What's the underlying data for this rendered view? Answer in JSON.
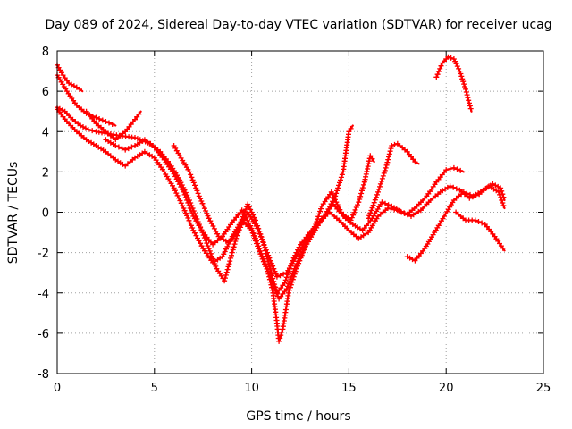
{
  "chart_data": {
    "type": "scatter",
    "title": "Day 089 of 2024, Sidereal Day-to-day VTEC variation (SDTVAR) for receiver ucag",
    "xlabel": "GPS time / hours",
    "ylabel": "SDTVAR / TECUs",
    "xlim": [
      0,
      25
    ],
    "ylim": [
      -8,
      8
    ],
    "xticks": [
      0,
      5,
      10,
      15,
      20,
      25
    ],
    "yticks": [
      -8,
      -6,
      -4,
      -2,
      0,
      2,
      4,
      6,
      8
    ],
    "xtick_labels": [
      "0",
      "5",
      "10",
      "15",
      "20",
      "25"
    ],
    "ytick_labels": [
      "-8",
      "-6",
      "-4",
      "-2",
      "0",
      "2",
      "4",
      "6",
      "8"
    ],
    "grid": true,
    "marker": "+",
    "color": "#ff0000",
    "series": [
      {
        "name": "track-1",
        "points": [
          [
            0,
            7.3
          ],
          [
            0.3,
            6.8
          ],
          [
            0.6,
            6.4
          ],
          [
            1.0,
            6.2
          ],
          [
            1.3,
            6.0
          ]
        ]
      },
      {
        "name": "track-2",
        "points": [
          [
            0,
            6.8
          ],
          [
            0.5,
            6.0
          ],
          [
            1.0,
            5.3
          ],
          [
            1.5,
            4.9
          ],
          [
            2.0,
            4.7
          ],
          [
            2.5,
            4.5
          ],
          [
            3.0,
            4.3
          ]
        ]
      },
      {
        "name": "track-3",
        "points": [
          [
            0,
            5.2
          ],
          [
            0.4,
            5.0
          ],
          [
            0.8,
            4.6
          ],
          [
            1.2,
            4.3
          ],
          [
            1.6,
            4.1
          ],
          [
            2.0,
            4.0
          ],
          [
            2.6,
            3.9
          ],
          [
            3.2,
            3.8
          ],
          [
            4.0,
            3.7
          ],
          [
            4.8,
            3.4
          ],
          [
            5.3,
            3.0
          ],
          [
            5.8,
            2.4
          ],
          [
            6.3,
            1.6
          ],
          [
            6.8,
            0.6
          ],
          [
            7.3,
            -0.6
          ],
          [
            7.8,
            -1.8
          ],
          [
            8.2,
            -2.8
          ],
          [
            8.6,
            -3.4
          ],
          [
            9.0,
            -2.0
          ],
          [
            9.4,
            -0.6
          ],
          [
            9.8,
            0.4
          ],
          [
            10.2,
            -0.4
          ],
          [
            10.6,
            -1.5
          ],
          [
            11.0,
            -3.0
          ],
          [
            11.3,
            -4.0
          ],
          [
            11.7,
            -3.5
          ],
          [
            12.1,
            -2.4
          ],
          [
            12.5,
            -1.6
          ],
          [
            13.0,
            -1.0
          ],
          [
            13.5,
            -0.5
          ],
          [
            14.0,
            0.0
          ],
          [
            14.5,
            -0.4
          ],
          [
            15.0,
            -0.9
          ],
          [
            15.5,
            -1.3
          ],
          [
            16.0,
            -1.0
          ],
          [
            16.5,
            -0.2
          ],
          [
            17.0,
            0.2
          ],
          [
            17.5,
            0.1
          ],
          [
            18.0,
            -0.1
          ],
          [
            18.5,
            0.3
          ],
          [
            19.0,
            0.8
          ],
          [
            19.5,
            1.5
          ],
          [
            20.0,
            2.1
          ],
          [
            20.4,
            2.2
          ],
          [
            20.9,
            2.0
          ]
        ]
      },
      {
        "name": "track-4",
        "points": [
          [
            0,
            5.1
          ],
          [
            0.5,
            4.5
          ],
          [
            1.0,
            4.0
          ],
          [
            1.5,
            3.6
          ],
          [
            2.0,
            3.3
          ],
          [
            2.5,
            3.0
          ],
          [
            3.0,
            2.6
          ],
          [
            3.5,
            2.3
          ],
          [
            4.0,
            2.7
          ],
          [
            4.5,
            3.0
          ],
          [
            5.0,
            2.7
          ],
          [
            5.5,
            2.0
          ],
          [
            6.0,
            1.2
          ],
          [
            6.5,
            0.2
          ],
          [
            7.0,
            -0.9
          ],
          [
            7.5,
            -1.8
          ],
          [
            8.0,
            -2.5
          ],
          [
            8.5,
            -2.2
          ],
          [
            9.0,
            -1.2
          ],
          [
            9.5,
            -0.4
          ],
          [
            10.0,
            -0.9
          ],
          [
            10.5,
            -2.2
          ],
          [
            11.0,
            -3.3
          ],
          [
            11.4,
            -4.3
          ],
          [
            11.8,
            -3.8
          ],
          [
            12.2,
            -2.8
          ],
          [
            12.7,
            -1.8
          ],
          [
            13.2,
            -1.0
          ],
          [
            13.7,
            -0.2
          ],
          [
            14.2,
            0.4
          ],
          [
            14.7,
            -0.2
          ],
          [
            15.2,
            -0.6
          ],
          [
            15.7,
            -0.9
          ],
          [
            16.2,
            -0.3
          ],
          [
            16.7,
            0.5
          ],
          [
            17.2,
            0.3
          ],
          [
            17.7,
            0.0
          ],
          [
            18.2,
            -0.2
          ],
          [
            18.7,
            0.1
          ],
          [
            19.2,
            0.6
          ],
          [
            19.7,
            1.0
          ],
          [
            20.2,
            1.3
          ],
          [
            20.7,
            1.1
          ],
          [
            21.2,
            0.7
          ],
          [
            21.7,
            0.9
          ],
          [
            22.2,
            1.3
          ],
          [
            22.7,
            1.0
          ],
          [
            23.0,
            0.2
          ]
        ]
      },
      {
        "name": "track-5",
        "points": [
          [
            1.5,
            5.0
          ],
          [
            2.0,
            4.4
          ],
          [
            2.5,
            4.0
          ],
          [
            3.0,
            3.6
          ],
          [
            3.5,
            4.0
          ],
          [
            4.0,
            4.6
          ],
          [
            4.3,
            5.0
          ]
        ]
      },
      {
        "name": "track-6",
        "points": [
          [
            2.5,
            3.6
          ],
          [
            3.0,
            3.3
          ],
          [
            3.5,
            3.1
          ],
          [
            4.0,
            3.3
          ],
          [
            4.5,
            3.6
          ],
          [
            5.0,
            3.2
          ],
          [
            5.5,
            2.6
          ],
          [
            6.0,
            1.9
          ],
          [
            6.5,
            1.0
          ],
          [
            7.0,
            -0.2
          ],
          [
            7.5,
            -1.0
          ],
          [
            8.0,
            -1.6
          ],
          [
            8.5,
            -1.2
          ],
          [
            9.0,
            -0.5
          ],
          [
            9.5,
            0.1
          ],
          [
            10.0,
            -0.8
          ],
          [
            10.4,
            -1.8
          ],
          [
            10.8,
            -2.8
          ],
          [
            11.1,
            -4.0
          ],
          [
            11.3,
            -5.5
          ],
          [
            11.4,
            -6.4
          ],
          [
            11.6,
            -5.8
          ],
          [
            11.9,
            -4.0
          ],
          [
            12.3,
            -2.8
          ],
          [
            12.8,
            -1.6
          ],
          [
            13.3,
            -0.7
          ],
          [
            13.8,
            -0.1
          ],
          [
            14.3,
            0.8
          ],
          [
            14.7,
            2.0
          ],
          [
            15.0,
            4.0
          ],
          [
            15.2,
            4.3
          ]
        ]
      },
      {
        "name": "track-7",
        "points": [
          [
            6.0,
            3.3
          ],
          [
            6.3,
            2.8
          ],
          [
            6.8,
            2.0
          ],
          [
            7.3,
            0.8
          ],
          [
            7.8,
            -0.3
          ],
          [
            8.3,
            -1.2
          ],
          [
            8.8,
            -1.5
          ],
          [
            9.3,
            -1.0
          ],
          [
            9.8,
            0.0
          ],
          [
            10.3,
            -0.8
          ],
          [
            10.8,
            -2.0
          ],
          [
            11.3,
            -3.2
          ],
          [
            11.8,
            -3.0
          ],
          [
            12.3,
            -2.2
          ],
          [
            12.8,
            -1.4
          ],
          [
            13.3,
            -0.6
          ],
          [
            13.6,
            0.3
          ],
          [
            14.1,
            1.0
          ],
          [
            14.6,
            0.0
          ],
          [
            15.1,
            -0.4
          ],
          [
            15.5,
            0.5
          ],
          [
            15.8,
            1.5
          ],
          [
            16.1,
            2.8
          ],
          [
            16.3,
            2.5
          ]
        ]
      },
      {
        "name": "track-8",
        "points": [
          [
            16.0,
            -0.3
          ],
          [
            16.5,
            1.0
          ],
          [
            16.9,
            2.2
          ],
          [
            17.2,
            3.3
          ],
          [
            17.5,
            3.4
          ],
          [
            18.0,
            3.0
          ],
          [
            18.4,
            2.5
          ],
          [
            18.6,
            2.4
          ]
        ]
      },
      {
        "name": "track-9",
        "points": [
          [
            18.0,
            -2.2
          ],
          [
            18.4,
            -2.4
          ],
          [
            18.9,
            -1.8
          ],
          [
            19.4,
            -1.0
          ],
          [
            19.9,
            -0.2
          ],
          [
            20.4,
            0.6
          ],
          [
            20.9,
            1.0
          ],
          [
            21.4,
            0.8
          ],
          [
            21.9,
            1.1
          ],
          [
            22.4,
            1.4
          ],
          [
            22.8,
            1.2
          ],
          [
            23.0,
            0.6
          ]
        ]
      },
      {
        "name": "track-10",
        "points": [
          [
            20.5,
            0.0
          ],
          [
            21.0,
            -0.4
          ],
          [
            21.5,
            -0.4
          ],
          [
            22.0,
            -0.6
          ],
          [
            22.5,
            -1.2
          ],
          [
            23.0,
            -1.9
          ]
        ]
      },
      {
        "name": "track-11",
        "points": [
          [
            19.5,
            6.7
          ],
          [
            19.8,
            7.4
          ],
          [
            20.1,
            7.7
          ],
          [
            20.4,
            7.6
          ],
          [
            20.7,
            7.0
          ],
          [
            21.0,
            6.1
          ],
          [
            21.3,
            5.0
          ]
        ]
      }
    ]
  }
}
